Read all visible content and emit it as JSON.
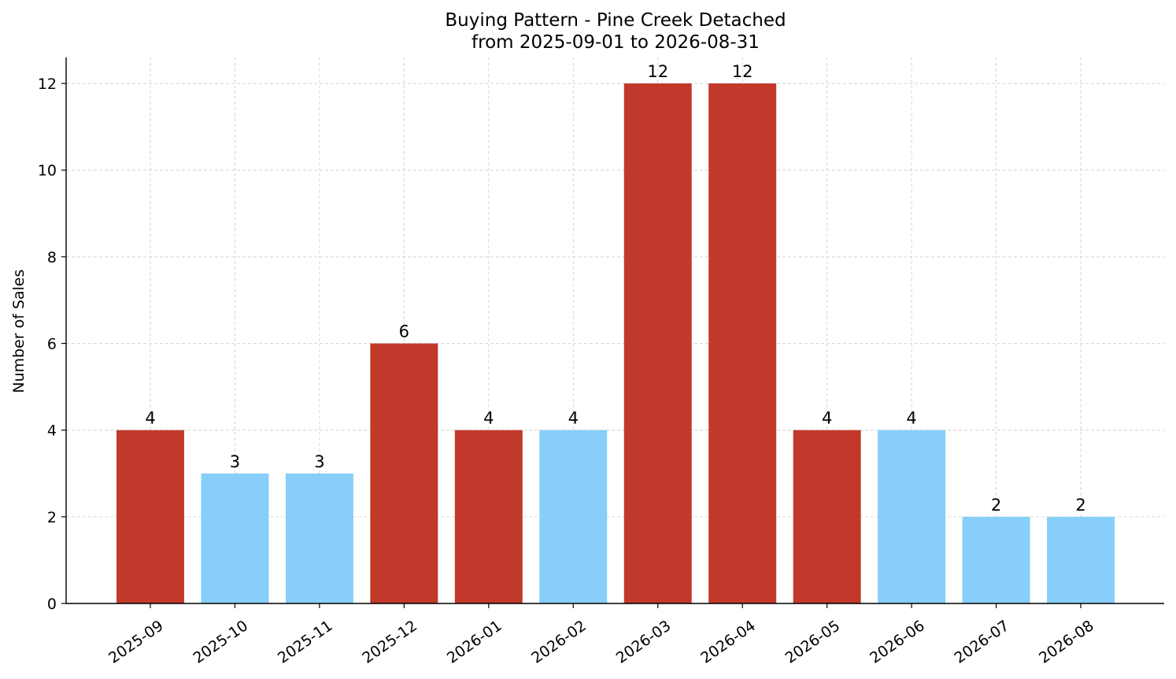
{
  "chart_data": {
    "type": "bar",
    "title": "Buying Pattern - Pine Creek Detached",
    "subtitle": "from 2025-09-01 to 2026-08-31",
    "xlabel": "",
    "ylabel": "Number of Sales",
    "categories": [
      "2025-09",
      "2025-10",
      "2025-11",
      "2025-12",
      "2026-01",
      "2026-02",
      "2026-03",
      "2026-04",
      "2026-05",
      "2026-06",
      "2026-07",
      "2026-08"
    ],
    "values": [
      4,
      3,
      3,
      6,
      4,
      4,
      12,
      12,
      4,
      4,
      2,
      2
    ],
    "bar_colors": [
      "#c0392b",
      "#87cefa",
      "#87cefa",
      "#c0392b",
      "#c0392b",
      "#87cefa",
      "#c0392b",
      "#c0392b",
      "#c0392b",
      "#87cefa",
      "#87cefa",
      "#87cefa"
    ],
    "ylim": [
      0,
      12.6
    ],
    "yticks": [
      0,
      2,
      4,
      6,
      8,
      10,
      12
    ],
    "grid": true,
    "legend": "none",
    "data_labels": true
  }
}
